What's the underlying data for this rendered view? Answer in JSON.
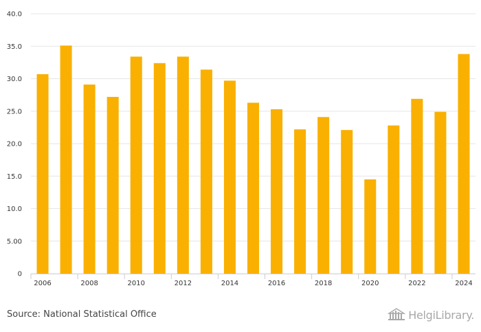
{
  "chart_data": {
    "type": "bar",
    "categories": [
      "2006",
      "2007",
      "2008",
      "2009",
      "2010",
      "2011",
      "2012",
      "2013",
      "2014",
      "2015",
      "2016",
      "2017",
      "2018",
      "2019",
      "2020",
      "2021",
      "2022",
      "2023",
      "2024"
    ],
    "values": [
      30.7,
      35.1,
      29.1,
      27.2,
      33.4,
      32.4,
      33.4,
      31.4,
      29.7,
      26.3,
      25.3,
      22.2,
      24.1,
      22.1,
      14.5,
      22.8,
      26.9,
      24.9,
      33.8
    ],
    "ylim": [
      0,
      40
    ],
    "yticks": [
      0,
      5,
      10,
      15,
      20,
      25,
      30,
      35,
      40
    ],
    "ytick_labels": [
      "0",
      "5.00",
      "10.0",
      "15.0",
      "20.0",
      "25.0",
      "30.0",
      "35.0",
      "40.0"
    ],
    "xtick_labels": [
      "2006",
      "2008",
      "2010",
      "2012",
      "2014",
      "2016",
      "2018",
      "2020",
      "2022",
      "2024"
    ],
    "title": "",
    "xlabel": "",
    "ylabel": "",
    "bar_color": "#F9B000",
    "grid": true
  },
  "footer": {
    "source": "Source: National Statistical Office",
    "logo_text": "HelgiLibrary."
  }
}
